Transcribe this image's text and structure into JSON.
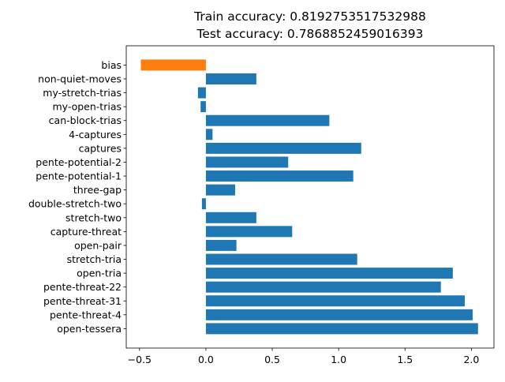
{
  "chart_data": {
    "type": "bar",
    "orientation": "horizontal",
    "title_lines": [
      "Train accuracy: 0.8192753517532988",
      "Test accuracy: 0.7868852459016393"
    ],
    "xlabel": "",
    "ylabel": "",
    "xlim": [
      -0.6,
      2.17
    ],
    "xticks": [
      -0.5,
      0.0,
      0.5,
      1.0,
      1.5,
      2.0
    ],
    "xtick_labels": [
      "−0.5",
      "0.0",
      "0.5",
      "1.0",
      "1.5",
      "2.0"
    ],
    "grid": false,
    "legend": "none",
    "categories": [
      "bias",
      "non-quiet-moves",
      "my-stretch-trias",
      "my-open-trias",
      "can-block-trias",
      "4-captures",
      "captures",
      "pente-potential-2",
      "pente-potential-1",
      "three-gap",
      "double-stretch-two",
      "stretch-two",
      "capture-threat",
      "open-pair",
      "stretch-tria",
      "open-tria",
      "pente-threat-22",
      "pente-threat-31",
      "pente-threat-4",
      "open-tessera"
    ],
    "values": [
      -0.49,
      0.38,
      -0.06,
      -0.04,
      0.93,
      0.05,
      1.17,
      0.62,
      1.11,
      0.22,
      -0.03,
      0.38,
      0.65,
      0.23,
      1.14,
      1.86,
      1.77,
      1.95,
      2.01,
      2.05
    ],
    "colors": {
      "bias": "#ff7f0e",
      "default": "#1f77b4"
    }
  }
}
